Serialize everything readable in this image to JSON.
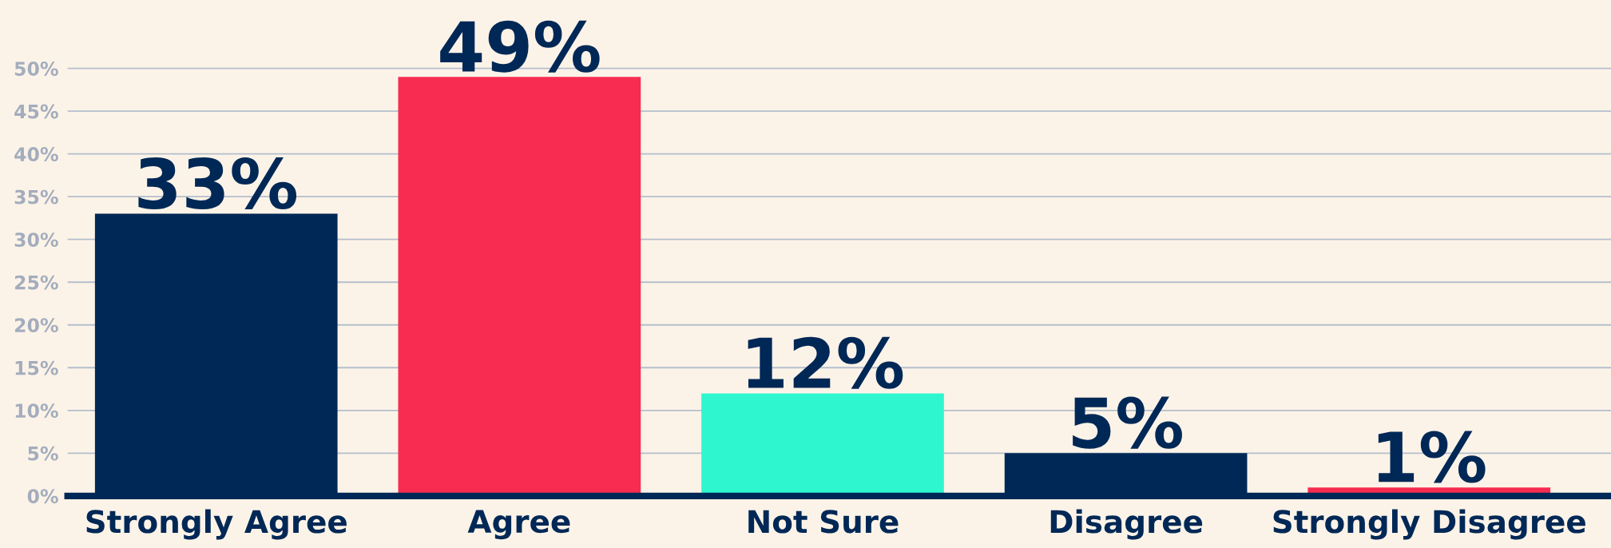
{
  "chart_data": {
    "type": "bar",
    "categories": [
      "Strongly Agree",
      "Agree",
      "Not Sure",
      "Disagree",
      "Strongly Disagree"
    ],
    "values": [
      33,
      49,
      12,
      5,
      1
    ],
    "colors": [
      "#002856",
      "#f72c50",
      "#2ef7d0",
      "#002856",
      "#f72c50"
    ],
    "value_labels": [
      "33%",
      "49%",
      "12%",
      "5%",
      "1%"
    ],
    "ylim": [
      0,
      58
    ],
    "yticks": [
      {
        "value": 0,
        "label": "0%"
      },
      {
        "value": 5,
        "label": "5%"
      },
      {
        "value": 10,
        "label": "10%"
      },
      {
        "value": 15,
        "label": "15%"
      },
      {
        "value": 20,
        "label": "20%"
      },
      {
        "value": 25,
        "label": "25%"
      },
      {
        "value": 30,
        "label": "30%"
      },
      {
        "value": 35,
        "label": "35%"
      },
      {
        "value": 40,
        "label": "40%"
      },
      {
        "value": 45,
        "label": "45%"
      },
      {
        "value": 50,
        "label": "50%"
      }
    ],
    "grid": "y",
    "legend": false
  }
}
